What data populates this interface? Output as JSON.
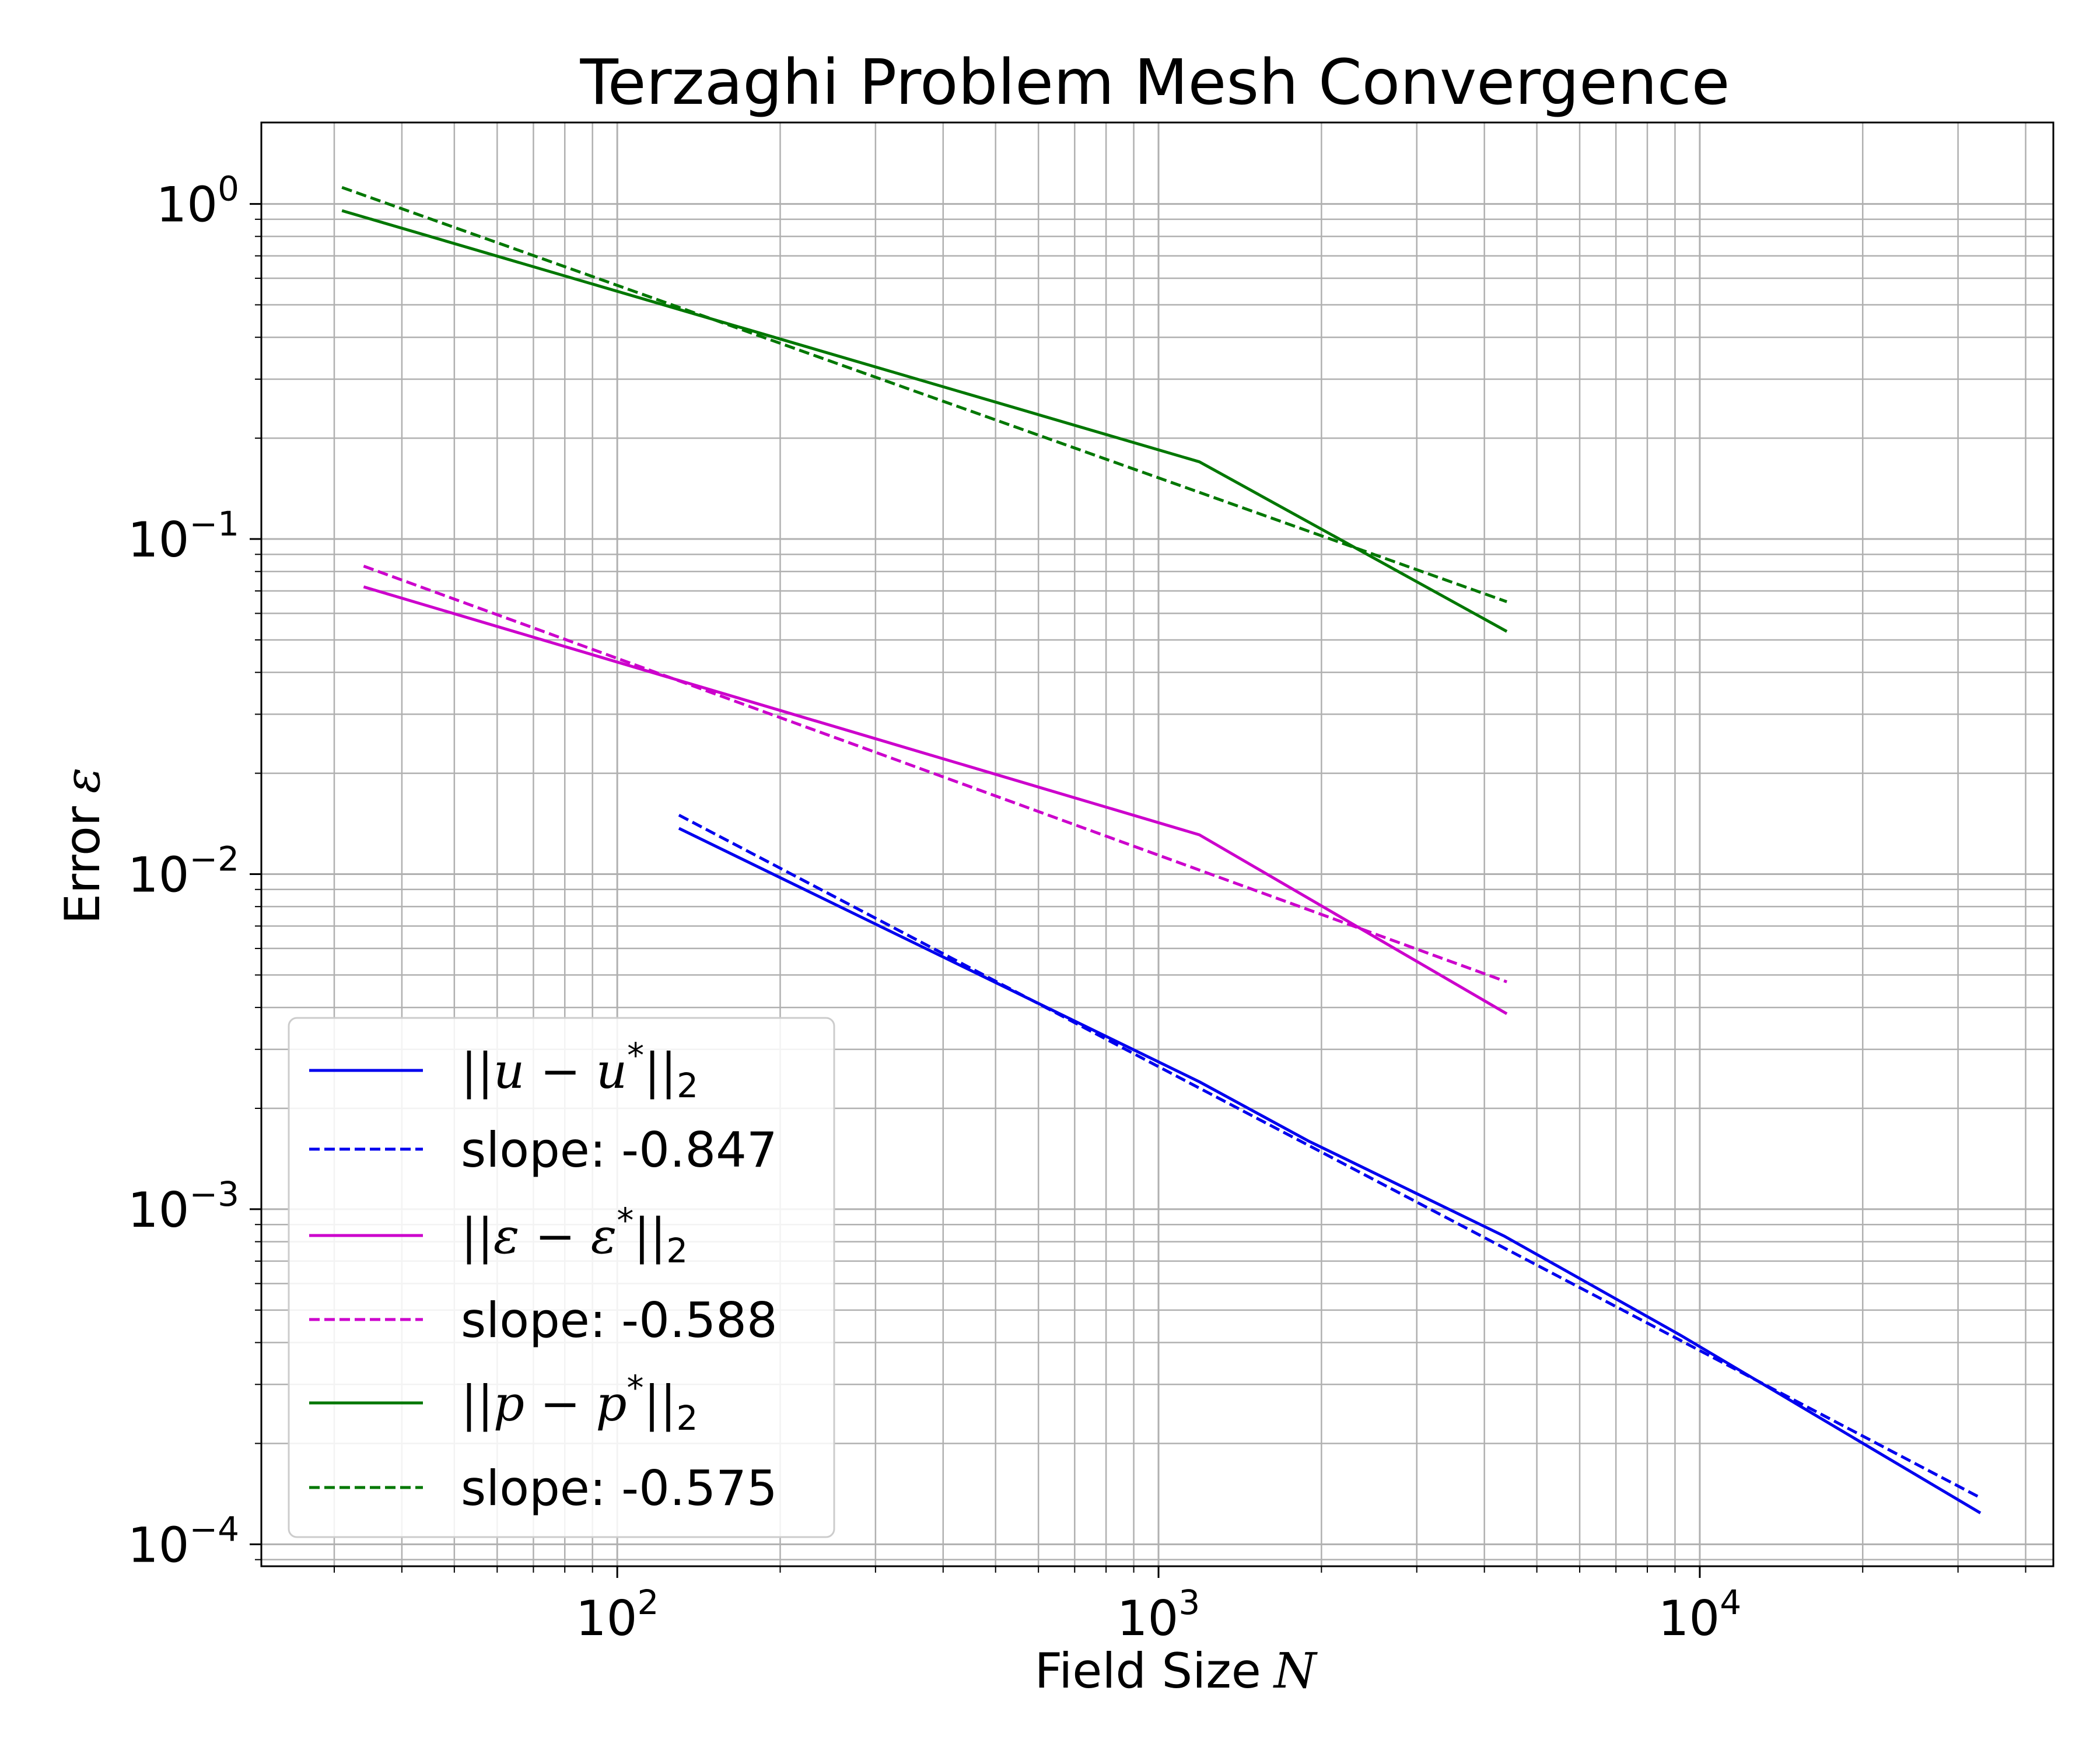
{
  "chart_data": {
    "type": "line",
    "title": "Terzaghi Problem Mesh Convergence",
    "xlabel": "Field Size",
    "xlabel_var": "N",
    "ylabel": "Error",
    "ylabel_var": "ε",
    "xscale": "log",
    "yscale": "log",
    "xlim": [
      22,
      45000
    ],
    "ylim": [
      8.6e-05,
      1.75
    ],
    "xticks": [
      {
        "value": 100,
        "base": "10",
        "exp": "2"
      },
      {
        "value": 1000,
        "base": "10",
        "exp": "3"
      },
      {
        "value": 10000,
        "base": "10",
        "exp": "4"
      }
    ],
    "yticks": [
      {
        "value": 0.0001,
        "base": "10",
        "exp": "−4"
      },
      {
        "value": 0.001,
        "base": "10",
        "exp": "−3"
      },
      {
        "value": 0.01,
        "base": "10",
        "exp": "−2"
      },
      {
        "value": 0.1,
        "base": "10",
        "exp": "−1"
      },
      {
        "value": 1,
        "base": "10",
        "exp": "0"
      }
    ],
    "grid": "major and minor",
    "legend_position": "lower-left",
    "series": [
      {
        "name": "||u − u*||₂",
        "var": "u",
        "color": "#0000ee",
        "style": "solid",
        "x": [
          130,
          1190,
          1890,
          4360,
          9230,
          33000
        ],
        "y": [
          0.0137,
          0.0024,
          0.0016,
          0.00083,
          0.00042,
          0.000124
        ]
      },
      {
        "name": "slope: -0.847",
        "color": "#0000ee",
        "style": "dashed",
        "x": [
          130,
          33000
        ],
        "y": [
          0.015,
          0.0001377
        ]
      },
      {
        "name": "||ε − ε*||₂",
        "var": "ε",
        "color": "#cc00cc",
        "style": "solid",
        "x": [
          34,
          1190,
          4400
        ],
        "y": [
          0.072,
          0.0131,
          0.00383
        ]
      },
      {
        "name": "slope: -0.588",
        "color": "#cc00cc",
        "style": "dashed",
        "x": [
          34,
          4400
        ],
        "y": [
          0.083,
          0.00477
        ]
      },
      {
        "name": "||p − p*||₂",
        "var": "p",
        "color": "#007700",
        "style": "solid",
        "x": [
          31,
          1190,
          4400
        ],
        "y": [
          0.955,
          0.17,
          0.053
        ]
      },
      {
        "name": "slope: -0.575",
        "color": "#007700",
        "style": "dashed",
        "x": [
          31,
          4400
        ],
        "y": [
          1.12,
          0.065
        ]
      }
    ]
  }
}
